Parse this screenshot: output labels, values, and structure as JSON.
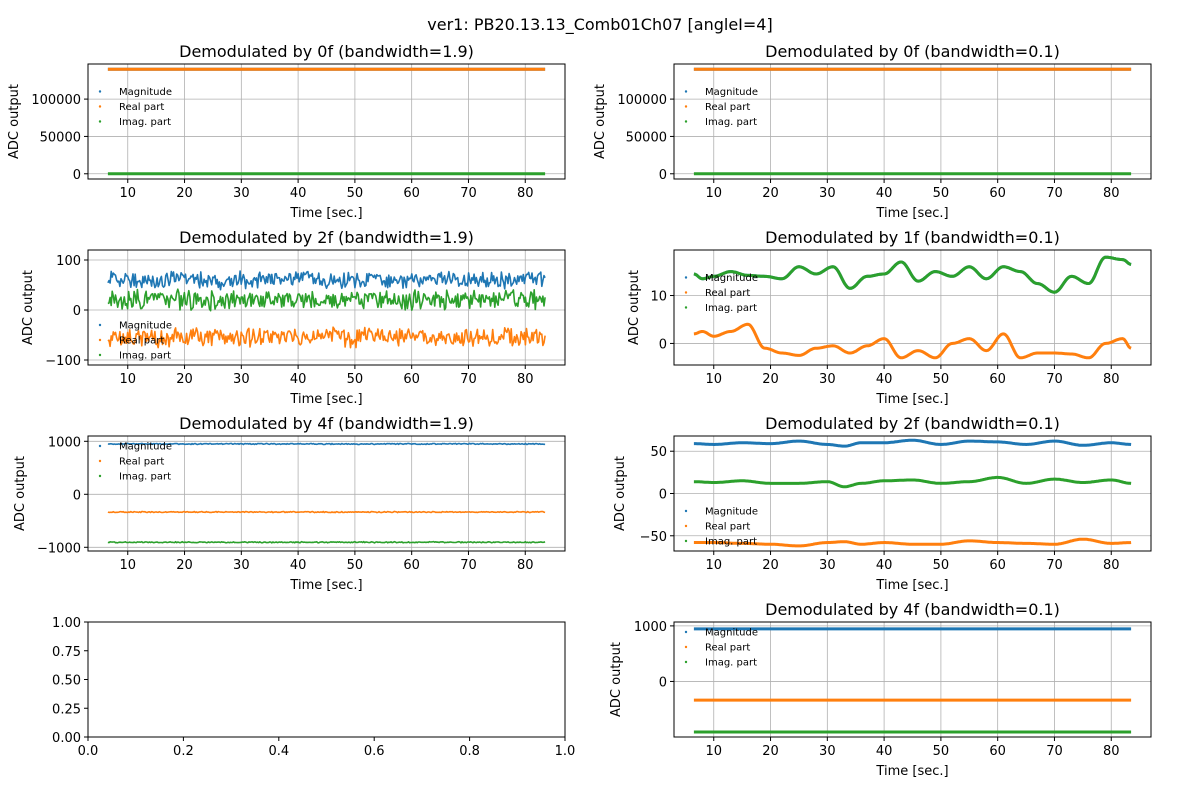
{
  "figure": {
    "suptitle": "ver1: PB20.13.13_Comb01Ch07 [angleI=4]"
  },
  "colors": {
    "magnitude": "#1f77b4",
    "real": "#ff7f0e",
    "imag": "#2ca02c",
    "grid": "#b0b0b0"
  },
  "chart_data": [
    {
      "type": "scatter",
      "title": "Demodulated by 0f (bandwidth=1.9)",
      "xlabel": "Time [sec.]",
      "ylabel": "ADC output",
      "xlim": [
        3,
        87
      ],
      "ylim": [
        -7000,
        147000
      ],
      "xticks": [
        10,
        20,
        30,
        40,
        50,
        60,
        70,
        80
      ],
      "yticks": [
        0,
        50000,
        100000
      ],
      "ytick_labels": [
        "0",
        "50000",
        "100000"
      ],
      "grid": true,
      "legend": "center-left",
      "series": [
        {
          "name": "Magnitude",
          "shape": "flat",
          "mean": 140000,
          "amp": 0
        },
        {
          "name": "Real part",
          "shape": "flat",
          "mean": 140000,
          "amp": 0
        },
        {
          "name": "Imag. part",
          "shape": "flat",
          "mean": 0,
          "amp": 0
        }
      ]
    },
    {
      "type": "scatter",
      "title": "Demodulated by 0f (bandwidth=0.1)",
      "xlabel": "Time [sec.]",
      "ylabel": "ADC output",
      "xlim": [
        3,
        87
      ],
      "ylim": [
        -7000,
        147000
      ],
      "xticks": [
        10,
        20,
        30,
        40,
        50,
        60,
        70,
        80
      ],
      "yticks": [
        0,
        50000,
        100000
      ],
      "ytick_labels": [
        "0",
        "50000",
        "100000"
      ],
      "grid": true,
      "legend": "center-left",
      "series": [
        {
          "name": "Magnitude",
          "shape": "flat",
          "mean": 140000,
          "amp": 0
        },
        {
          "name": "Real part",
          "shape": "flat",
          "mean": 140000,
          "amp": 0
        },
        {
          "name": "Imag. part",
          "shape": "flat",
          "mean": 0,
          "amp": 0
        }
      ]
    },
    {
      "type": "scatter",
      "title": "Demodulated by 2f (bandwidth=1.9)",
      "xlabel": "Time [sec.]",
      "ylabel": "ADC output",
      "xlim": [
        3,
        87
      ],
      "ylim": [
        -110,
        120
      ],
      "xticks": [
        10,
        20,
        30,
        40,
        50,
        60,
        70,
        80
      ],
      "yticks": [
        -100,
        0,
        100
      ],
      "ytick_labels": [
        "−100",
        "0",
        "100"
      ],
      "grid": true,
      "legend": "lower-left",
      "series": [
        {
          "name": "Magnitude",
          "shape": "noise",
          "mean": 60,
          "amp": 20
        },
        {
          "name": "Real part",
          "shape": "noise",
          "mean": -55,
          "amp": 22
        },
        {
          "name": "Imag. part",
          "shape": "noise",
          "mean": 20,
          "amp": 22
        }
      ]
    },
    {
      "type": "scatter",
      "title": "Demodulated by 1f (bandwidth=0.1)",
      "xlabel": "Time [sec.]",
      "ylabel": "ADC output",
      "xlim": [
        3,
        87
      ],
      "ylim": [
        -4.5,
        19.5
      ],
      "xticks": [
        10,
        20,
        30,
        40,
        50,
        60,
        70,
        80
      ],
      "yticks": [
        0,
        10
      ],
      "ytick_labels": [
        "0",
        "10"
      ],
      "grid": true,
      "legend": "center-left",
      "series": [
        {
          "name": "Magnitude",
          "shape": "wave",
          "x": [
            6.5,
            8,
            10,
            13,
            16,
            19,
            22,
            25,
            28,
            31,
            34,
            37,
            40,
            43,
            46,
            49,
            52,
            55,
            58,
            61,
            64,
            67,
            70,
            73,
            76,
            79,
            82,
            83.5
          ],
          "y": [
            14.5,
            13.5,
            14,
            15,
            14.2,
            14,
            13.5,
            16,
            14.5,
            16,
            11.5,
            14,
            14.5,
            17,
            13,
            15,
            14,
            16,
            13.5,
            16,
            15,
            12.5,
            10.7,
            14,
            12.5,
            18,
            17.5,
            16.5
          ]
        },
        {
          "name": "Real part",
          "shape": "wave",
          "x": [
            6.5,
            8,
            10,
            13,
            16,
            19,
            22,
            25,
            28,
            31,
            34,
            37,
            40,
            43,
            46,
            49,
            52,
            55,
            58,
            61,
            64,
            67,
            70,
            73,
            76,
            79,
            82,
            83.5
          ],
          "y": [
            2,
            2.5,
            1.5,
            2.5,
            4,
            -1,
            -2,
            -2.5,
            -1,
            -0.5,
            -2,
            -0.5,
            1,
            -3,
            -1.5,
            -3,
            0,
            1,
            -1.5,
            2,
            -3,
            -2,
            -2,
            -2.2,
            -3,
            0,
            1,
            -1
          ]
        },
        {
          "name": "Imag. part",
          "shape": "wave",
          "x": [
            6.5,
            8,
            10,
            13,
            16,
            19,
            22,
            25,
            28,
            31,
            34,
            37,
            40,
            43,
            46,
            49,
            52,
            55,
            58,
            61,
            64,
            67,
            70,
            73,
            76,
            79,
            82,
            83.5
          ],
          "y": [
            14.5,
            13.5,
            14,
            15,
            14.2,
            14,
            13.5,
            16,
            14.5,
            16,
            11.5,
            14,
            14.5,
            17,
            13,
            15,
            14,
            16,
            13.5,
            16,
            15,
            12.5,
            10.7,
            14,
            12.5,
            18,
            17.5,
            16.5
          ]
        }
      ]
    },
    {
      "type": "scatter",
      "title": "Demodulated by 4f (bandwidth=1.9)",
      "xlabel": "Time [sec.]",
      "ylabel": "ADC output",
      "xlim": [
        3,
        87
      ],
      "ylim": [
        -1070,
        1100
      ],
      "xticks": [
        10,
        20,
        30,
        40,
        50,
        60,
        70,
        80
      ],
      "yticks": [
        -1000,
        0,
        1000
      ],
      "ytick_labels": [
        "−1000",
        "0",
        "1000"
      ],
      "grid": true,
      "legend": "upper-left",
      "series": [
        {
          "name": "Magnitude",
          "shape": "noise",
          "mean": 950,
          "amp": 12
        },
        {
          "name": "Real part",
          "shape": "noise",
          "mean": -335,
          "amp": 12
        },
        {
          "name": "Imag. part",
          "shape": "noise",
          "mean": -905,
          "amp": 12
        }
      ]
    },
    {
      "type": "scatter",
      "title": "Demodulated by 2f (bandwidth=0.1)",
      "xlabel": "Time [sec.]",
      "ylabel": "ADC output",
      "xlim": [
        3,
        87
      ],
      "ylim": [
        -68,
        68
      ],
      "xticks": [
        10,
        20,
        30,
        40,
        50,
        60,
        70,
        80
      ],
      "yticks": [
        -50,
        0,
        50
      ],
      "ytick_labels": [
        "−50",
        "0",
        "50"
      ],
      "grid": true,
      "legend": "lower-left",
      "series": [
        {
          "name": "Magnitude",
          "shape": "wave",
          "x": [
            6.5,
            10,
            15,
            20,
            25,
            30,
            33,
            36,
            40,
            45,
            50,
            55,
            60,
            65,
            70,
            75,
            80,
            83.5
          ],
          "y": [
            59,
            58,
            60,
            59,
            62,
            58,
            56,
            60,
            60,
            63,
            58,
            62,
            61,
            58,
            62,
            57,
            60,
            58
          ]
        },
        {
          "name": "Real part",
          "shape": "wave",
          "x": [
            6.5,
            10,
            15,
            20,
            25,
            30,
            33,
            36,
            40,
            45,
            50,
            55,
            60,
            65,
            70,
            75,
            80,
            83.5
          ],
          "y": [
            -58,
            -58,
            -59,
            -60,
            -62,
            -58,
            -57,
            -60,
            -58,
            -60,
            -60,
            -56,
            -58,
            -59,
            -60,
            -54,
            -59,
            -58
          ]
        },
        {
          "name": "Imag. part",
          "shape": "wave",
          "x": [
            6.5,
            10,
            15,
            20,
            25,
            30,
            33,
            36,
            40,
            45,
            50,
            55,
            60,
            65,
            70,
            75,
            80,
            83.5
          ],
          "y": [
            14,
            13,
            15,
            12,
            12,
            14,
            8,
            12,
            15,
            16,
            12,
            14,
            19,
            12,
            17,
            13,
            16,
            12
          ]
        }
      ]
    },
    {
      "type": "scatter",
      "title": "",
      "xlabel": "",
      "ylabel": "",
      "xlim": [
        0,
        1
      ],
      "ylim": [
        0,
        1
      ],
      "xticks": [
        0,
        0.2,
        0.4,
        0.6,
        0.8,
        1.0
      ],
      "xtick_labels": [
        "0.0",
        "0.2",
        "0.4",
        "0.6",
        "0.8",
        "1.0"
      ],
      "yticks": [
        0,
        0.25,
        0.5,
        0.75,
        1.0
      ],
      "ytick_labels": [
        "0.00",
        "0.25",
        "0.50",
        "0.75",
        "1.00"
      ],
      "grid": false,
      "legend": "none",
      "series": []
    },
    {
      "type": "scatter",
      "title": "Demodulated by 4f (bandwidth=0.1)",
      "xlabel": "Time [sec.]",
      "ylabel": "ADC output",
      "xlim": [
        3,
        87
      ],
      "ylim": [
        -1000,
        1070
      ],
      "xticks": [
        10,
        20,
        30,
        40,
        50,
        60,
        70,
        80
      ],
      "yticks": [
        0,
        1000
      ],
      "ytick_labels": [
        "0",
        "1000"
      ],
      "grid": true,
      "legend": "upper-left",
      "series": [
        {
          "name": "Magnitude",
          "shape": "flat",
          "mean": 945,
          "amp": 0
        },
        {
          "name": "Real part",
          "shape": "flat",
          "mean": -335,
          "amp": 0
        },
        {
          "name": "Imag. part",
          "shape": "flat",
          "mean": -910,
          "amp": 0
        }
      ]
    }
  ]
}
